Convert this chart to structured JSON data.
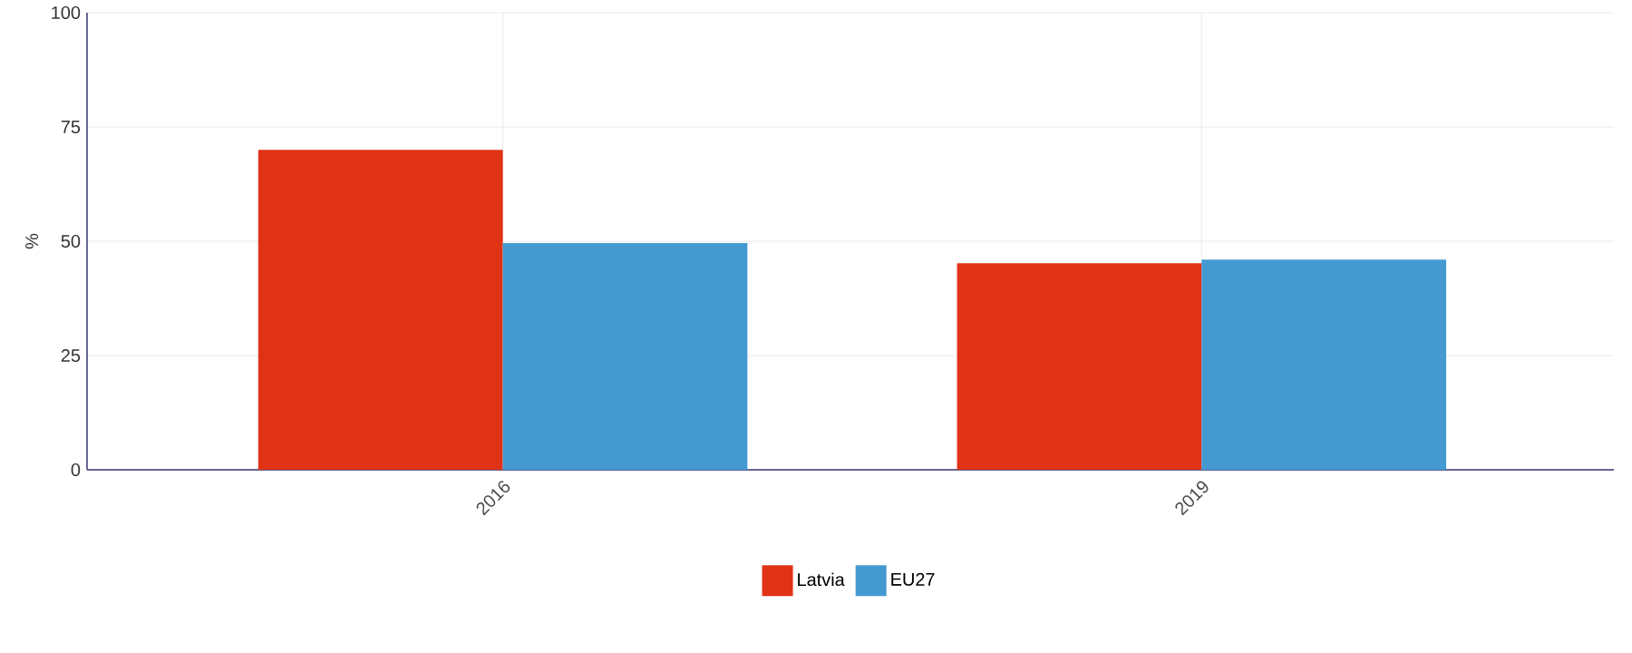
{
  "chart_data": {
    "type": "bar",
    "ylabel": "%",
    "categories": [
      "2016",
      "2019"
    ],
    "series": [
      {
        "name": "Latvia",
        "color": "#e03316",
        "values": [
          70,
          45.2
        ]
      },
      {
        "name": "EU27",
        "color": "#4499d1",
        "values": [
          49.6,
          46
        ]
      }
    ],
    "ylim": [
      0,
      100
    ],
    "yticks": [
      0,
      25,
      50,
      75,
      100
    ],
    "grid": true,
    "legend": "bottom"
  }
}
